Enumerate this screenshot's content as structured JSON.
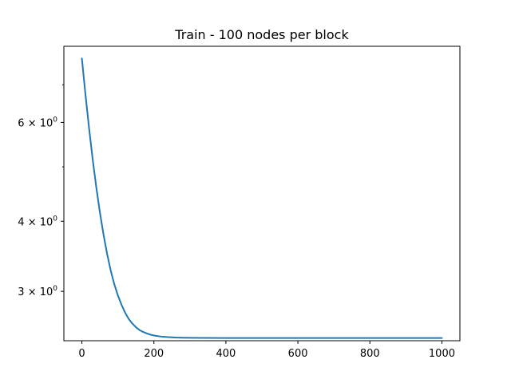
{
  "chart_data": {
    "type": "line",
    "title": "Train - 100 nodes per block",
    "xlabel": "",
    "ylabel": "",
    "x_scale": "linear",
    "y_scale": "log",
    "xlim": [
      -50,
      1050
    ],
    "ylim": [
      2.45,
      8.2
    ],
    "grid": false,
    "x_ticks": [
      {
        "value": 0,
        "label": "0"
      },
      {
        "value": 200,
        "label": "200"
      },
      {
        "value": 400,
        "label": "400"
      },
      {
        "value": 600,
        "label": "600"
      },
      {
        "value": 800,
        "label": "800"
      },
      {
        "value": 1000,
        "label": "1000"
      }
    ],
    "y_major_ticks": [
      {
        "value": 3,
        "label_coef": "3",
        "label_exp": "0"
      },
      {
        "value": 4,
        "label_coef": "4",
        "label_exp": "0"
      },
      {
        "value": 6,
        "label_coef": "6",
        "label_exp": "0"
      }
    ],
    "y_minor_ticks": [
      5,
      7
    ],
    "series": [
      {
        "color": "#1f77b4",
        "x": [
          0,
          10,
          20,
          30,
          40,
          50,
          60,
          70,
          80,
          90,
          100,
          110,
          120,
          130,
          140,
          150,
          160,
          170,
          180,
          190,
          200,
          220,
          240,
          260,
          280,
          300,
          350,
          400,
          500,
          600,
          700,
          800,
          900,
          1000
        ],
        "y": [
          7.8,
          6.72,
          5.86,
          5.16,
          4.6,
          4.15,
          3.79,
          3.5,
          3.27,
          3.09,
          2.95,
          2.84,
          2.75,
          2.68,
          2.63,
          2.59,
          2.56,
          2.54,
          2.525,
          2.512,
          2.503,
          2.492,
          2.486,
          2.482,
          2.48,
          2.479,
          2.478,
          2.477,
          2.477,
          2.477,
          2.477,
          2.477,
          2.477,
          2.477
        ]
      }
    ]
  }
}
